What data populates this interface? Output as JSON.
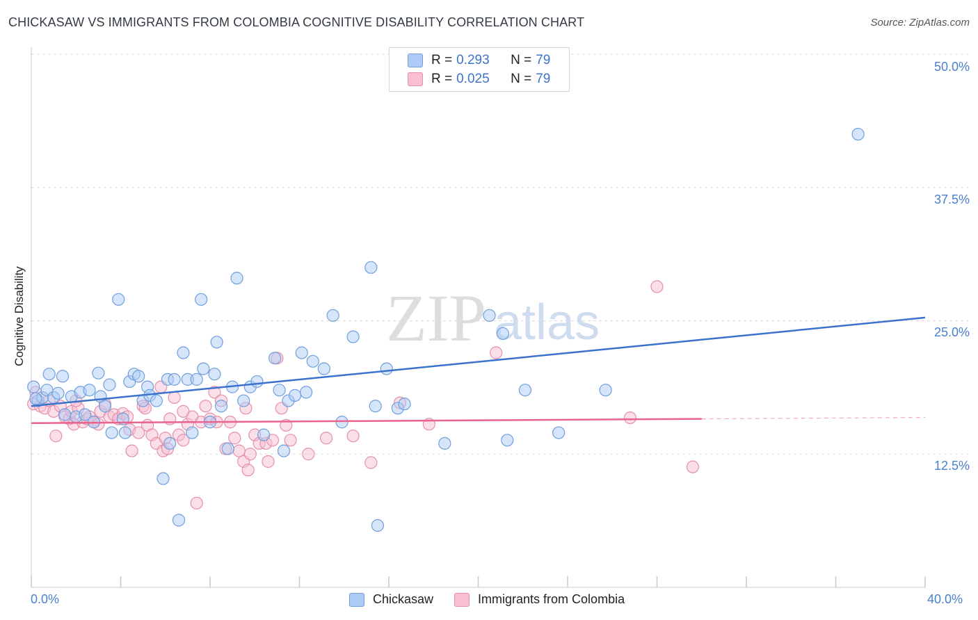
{
  "header": {
    "title": "CHICKASAW VS IMMIGRANTS FROM COLOMBIA COGNITIVE DISABILITY CORRELATION CHART",
    "source": "Source: ZipAtlas.com"
  },
  "watermark": {
    "zip": "ZIP",
    "atlas": "atlas"
  },
  "legend": {
    "rows": [
      {
        "r_label": "R =",
        "r_value": "0.293",
        "n_label": "N =",
        "n_value": "79",
        "color": "#aecbf5"
      },
      {
        "r_label": "R =",
        "r_value": "0.025",
        "n_label": "N =",
        "n_value": "79",
        "color": "#f7bfd1"
      }
    ]
  },
  "bottom_legend": {
    "series1": "Chickasaw",
    "series2": "Immigrants from Colombia"
  },
  "colors": {
    "blue_fill": "#aecbf5",
    "blue_stroke": "#6f9fdc",
    "blue_line": "#3a72cc",
    "pink_fill": "#f7bfd1",
    "pink_stroke": "#e58fab",
    "pink_line": "#e9638d",
    "grid": "#d9d9d9",
    "tick_text": "#4a7fcf"
  },
  "chart_data": {
    "type": "scatter",
    "title": "CHICKASAW VS IMMIGRANTS FROM COLOMBIA COGNITIVE DISABILITY CORRELATION CHART",
    "xlabel": "",
    "ylabel": "Cognitive Disability",
    "xlim": [
      0,
      40
    ],
    "ylim": [
      0,
      50
    ],
    "x_tick_labels": [
      "0.0%",
      "40.0%"
    ],
    "y_ticks": [
      12.5,
      25.0,
      37.5,
      50.0
    ],
    "y_tick_labels": [
      "12.5%",
      "25.0%",
      "37.5%",
      "50.0%"
    ],
    "grid": true,
    "series": [
      {
        "name": "Chickasaw",
        "r": 0.293,
        "n": 79,
        "trend": {
          "x": [
            0,
            40
          ],
          "y": [
            17.0,
            25.3
          ]
        },
        "points": [
          [
            0.1,
            18.8
          ],
          [
            0.3,
            17.5
          ],
          [
            0.5,
            17.8
          ],
          [
            0.7,
            18.5
          ],
          [
            0.8,
            20.0
          ],
          [
            1.0,
            17.8
          ],
          [
            1.2,
            18.2
          ],
          [
            1.4,
            19.8
          ],
          [
            1.5,
            16.2
          ],
          [
            1.8,
            17.9
          ],
          [
            2.0,
            16.0
          ],
          [
            2.2,
            18.3
          ],
          [
            2.4,
            16.2
          ],
          [
            2.6,
            18.5
          ],
          [
            2.8,
            15.5
          ],
          [
            3.0,
            20.1
          ],
          [
            3.1,
            17.9
          ],
          [
            3.3,
            17.0
          ],
          [
            3.5,
            19.0
          ],
          [
            3.6,
            14.5
          ],
          [
            3.9,
            27.0
          ],
          [
            4.1,
            15.8
          ],
          [
            4.2,
            14.5
          ],
          [
            4.4,
            19.3
          ],
          [
            4.6,
            20.0
          ],
          [
            4.8,
            19.8
          ],
          [
            5.0,
            17.5
          ],
          [
            5.2,
            18.8
          ],
          [
            5.3,
            18.0
          ],
          [
            5.6,
            17.5
          ],
          [
            5.9,
            10.2
          ],
          [
            6.1,
            19.5
          ],
          [
            6.2,
            13.5
          ],
          [
            6.4,
            19.5
          ],
          [
            6.6,
            6.3
          ],
          [
            6.8,
            22.0
          ],
          [
            7.0,
            19.5
          ],
          [
            7.2,
            14.5
          ],
          [
            7.4,
            19.5
          ],
          [
            7.6,
            27.0
          ],
          [
            7.7,
            20.5
          ],
          [
            8.0,
            15.5
          ],
          [
            8.2,
            20.0
          ],
          [
            8.3,
            23.0
          ],
          [
            8.5,
            17.0
          ],
          [
            8.8,
            13.0
          ],
          [
            9.0,
            18.8
          ],
          [
            9.2,
            29.0
          ],
          [
            9.5,
            17.5
          ],
          [
            9.8,
            18.8
          ],
          [
            10.1,
            19.3
          ],
          [
            10.4,
            14.3
          ],
          [
            10.9,
            21.5
          ],
          [
            11.1,
            18.5
          ],
          [
            11.3,
            12.8
          ],
          [
            11.5,
            17.5
          ],
          [
            11.8,
            18.0
          ],
          [
            12.1,
            22.0
          ],
          [
            12.3,
            18.3
          ],
          [
            12.6,
            21.2
          ],
          [
            13.1,
            20.5
          ],
          [
            13.5,
            25.5
          ],
          [
            13.9,
            15.5
          ],
          [
            14.4,
            23.5
          ],
          [
            15.2,
            30.0
          ],
          [
            15.4,
            17.0
          ],
          [
            15.5,
            5.8
          ],
          [
            15.9,
            20.5
          ],
          [
            16.4,
            16.8
          ],
          [
            16.7,
            17.2
          ],
          [
            18.5,
            13.5
          ],
          [
            20.5,
            25.5
          ],
          [
            21.1,
            23.8
          ],
          [
            21.3,
            13.8
          ],
          [
            22.1,
            18.5
          ],
          [
            23.6,
            14.5
          ],
          [
            25.7,
            18.5
          ],
          [
            37.0,
            42.5
          ],
          [
            0.2,
            17.7
          ]
        ]
      },
      {
        "name": "Immigrants from Colombia",
        "r": 0.025,
        "n": 79,
        "trend": {
          "x": [
            0,
            30
          ],
          "y": [
            15.4,
            15.8
          ]
        },
        "trend_dashed_to": 40,
        "points": [
          [
            0.1,
            17.2
          ],
          [
            0.2,
            18.3
          ],
          [
            0.4,
            17.0
          ],
          [
            0.6,
            16.8
          ],
          [
            0.8,
            17.5
          ],
          [
            1.0,
            16.5
          ],
          [
            1.3,
            17.0
          ],
          [
            1.5,
            16.0
          ],
          [
            1.7,
            15.8
          ],
          [
            1.8,
            16.5
          ],
          [
            1.9,
            15.3
          ],
          [
            2.1,
            16.8
          ],
          [
            2.3,
            15.5
          ],
          [
            2.5,
            15.8
          ],
          [
            2.6,
            16.0
          ],
          [
            2.8,
            15.5
          ],
          [
            3.0,
            15.3
          ],
          [
            3.1,
            16.5
          ],
          [
            3.3,
            17.2
          ],
          [
            3.5,
            16.0
          ],
          [
            3.7,
            16.2
          ],
          [
            3.9,
            15.8
          ],
          [
            4.1,
            16.3
          ],
          [
            4.3,
            16.0
          ],
          [
            4.4,
            14.8
          ],
          [
            4.5,
            12.8
          ],
          [
            4.8,
            14.5
          ],
          [
            5.0,
            17.0
          ],
          [
            5.1,
            16.8
          ],
          [
            5.2,
            15.2
          ],
          [
            5.4,
            14.3
          ],
          [
            5.6,
            13.5
          ],
          [
            5.8,
            18.8
          ],
          [
            5.9,
            12.8
          ],
          [
            6.0,
            14.0
          ],
          [
            6.1,
            13.0
          ],
          [
            6.2,
            15.8
          ],
          [
            6.4,
            17.8
          ],
          [
            6.6,
            14.3
          ],
          [
            6.8,
            13.8
          ],
          [
            7.0,
            15.3
          ],
          [
            7.2,
            16.0
          ],
          [
            7.4,
            7.9
          ],
          [
            7.6,
            15.5
          ],
          [
            7.8,
            17.0
          ],
          [
            8.0,
            15.8
          ],
          [
            8.2,
            18.3
          ],
          [
            8.3,
            15.5
          ],
          [
            8.5,
            17.5
          ],
          [
            8.7,
            13.0
          ],
          [
            8.9,
            15.5
          ],
          [
            9.1,
            14.0
          ],
          [
            9.3,
            12.8
          ],
          [
            9.5,
            11.8
          ],
          [
            9.7,
            11.0
          ],
          [
            9.8,
            12.5
          ],
          [
            10.0,
            14.3
          ],
          [
            10.2,
            13.5
          ],
          [
            10.5,
            13.5
          ],
          [
            10.6,
            11.8
          ],
          [
            10.8,
            13.8
          ],
          [
            11.0,
            21.5
          ],
          [
            11.2,
            16.8
          ],
          [
            11.4,
            15.2
          ],
          [
            11.6,
            13.8
          ],
          [
            12.4,
            12.5
          ],
          [
            13.2,
            14.0
          ],
          [
            14.4,
            14.2
          ],
          [
            15.2,
            11.7
          ],
          [
            16.5,
            17.3
          ],
          [
            17.8,
            15.3
          ],
          [
            20.8,
            22.0
          ],
          [
            26.8,
            15.9
          ],
          [
            28.0,
            28.2
          ],
          [
            29.6,
            11.3
          ],
          [
            1.1,
            14.2
          ],
          [
            2.0,
            17.5
          ],
          [
            6.8,
            16.5
          ],
          [
            9.6,
            16.8
          ]
        ]
      }
    ]
  }
}
